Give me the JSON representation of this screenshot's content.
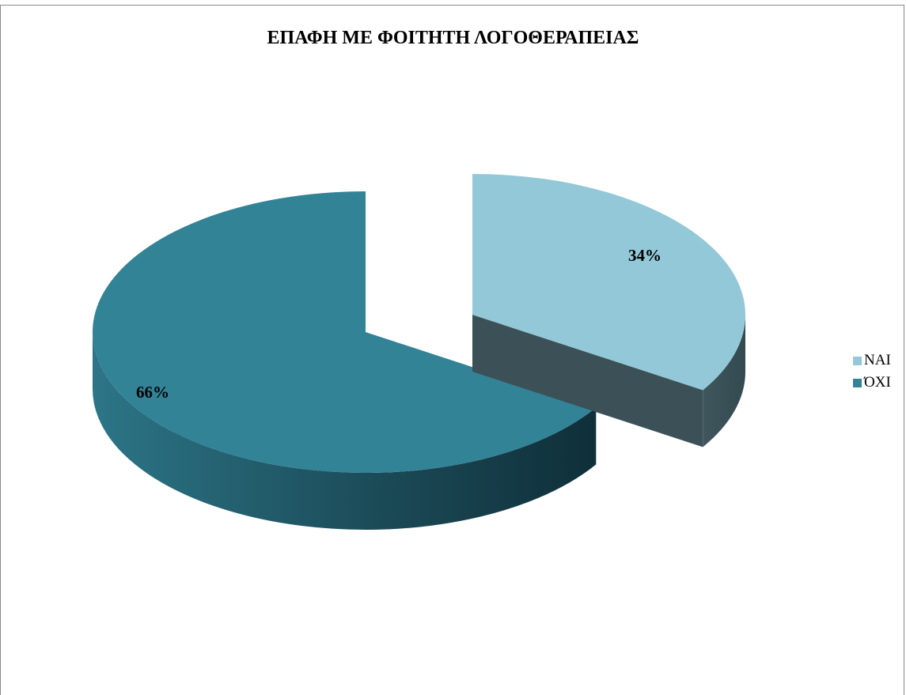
{
  "chart_data": {
    "type": "pie",
    "title": "ΕΠΑΦΗ ΜΕ ΦΟΙΤΗΤΗ ΛΟΓΟΘΕΡΑΠΕΙΑΣ",
    "categories": [
      "ΝΑΙ",
      "ΌΧΙ"
    ],
    "values": [
      34,
      66
    ],
    "data_labels": [
      "34%",
      "66%"
    ],
    "colors": [
      "#93c8d8",
      "#338397"
    ],
    "side_colors": [
      "#3c5157",
      "#1f5c6a"
    ],
    "legend": {
      "position": "right",
      "entries": [
        {
          "label": "ΝΑΙ",
          "color": "#93c8d8"
        },
        {
          "label": "ΌΧΙ",
          "color": "#338397"
        }
      ]
    },
    "style": "3d-exploded"
  }
}
